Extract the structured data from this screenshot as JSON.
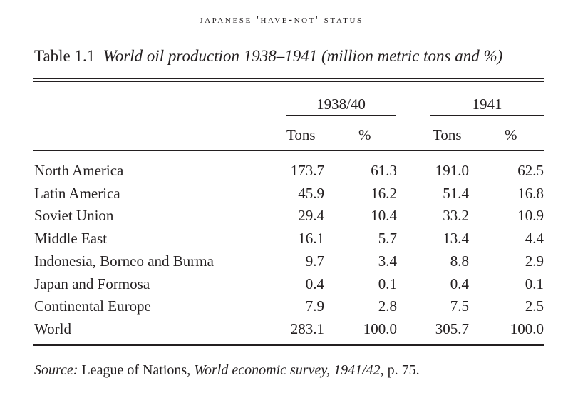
{
  "running_head": "JAPANESE 'HAVE-NOT' STATUS",
  "caption": {
    "label": "Table 1.1",
    "title": "World oil production 1938–1941 (million metric tons and %)"
  },
  "table": {
    "groups": [
      "1938/40",
      "1941"
    ],
    "subheaders": [
      "Tons",
      "%",
      "Tons",
      "%"
    ],
    "rows": [
      {
        "label": "North America",
        "values": [
          "173.7",
          "61.3",
          "191.0",
          "62.5"
        ]
      },
      {
        "label": "Latin America",
        "values": [
          "45.9",
          "16.2",
          "51.4",
          "16.8"
        ]
      },
      {
        "label": "Soviet Union",
        "values": [
          "29.4",
          "10.4",
          "33.2",
          "10.9"
        ]
      },
      {
        "label": "Middle East",
        "values": [
          "16.1",
          "5.7",
          "13.4",
          "4.4"
        ]
      },
      {
        "label": "Indonesia, Borneo and Burma",
        "values": [
          "9.7",
          "3.4",
          "8.8",
          "2.9"
        ]
      },
      {
        "label": "Japan and Formosa",
        "values": [
          "0.4",
          "0.1",
          "0.4",
          "0.1"
        ]
      },
      {
        "label": "Continental Europe",
        "values": [
          "7.9",
          "2.8",
          "7.5",
          "2.5"
        ]
      },
      {
        "label": "World",
        "values": [
          "283.1",
          "100.0",
          "305.7",
          "100.0"
        ]
      }
    ]
  },
  "source": {
    "label": "Source:",
    "publisher": "League of Nations,",
    "work": "World economic survey, 1941/42",
    "page": ", p. 75."
  }
}
